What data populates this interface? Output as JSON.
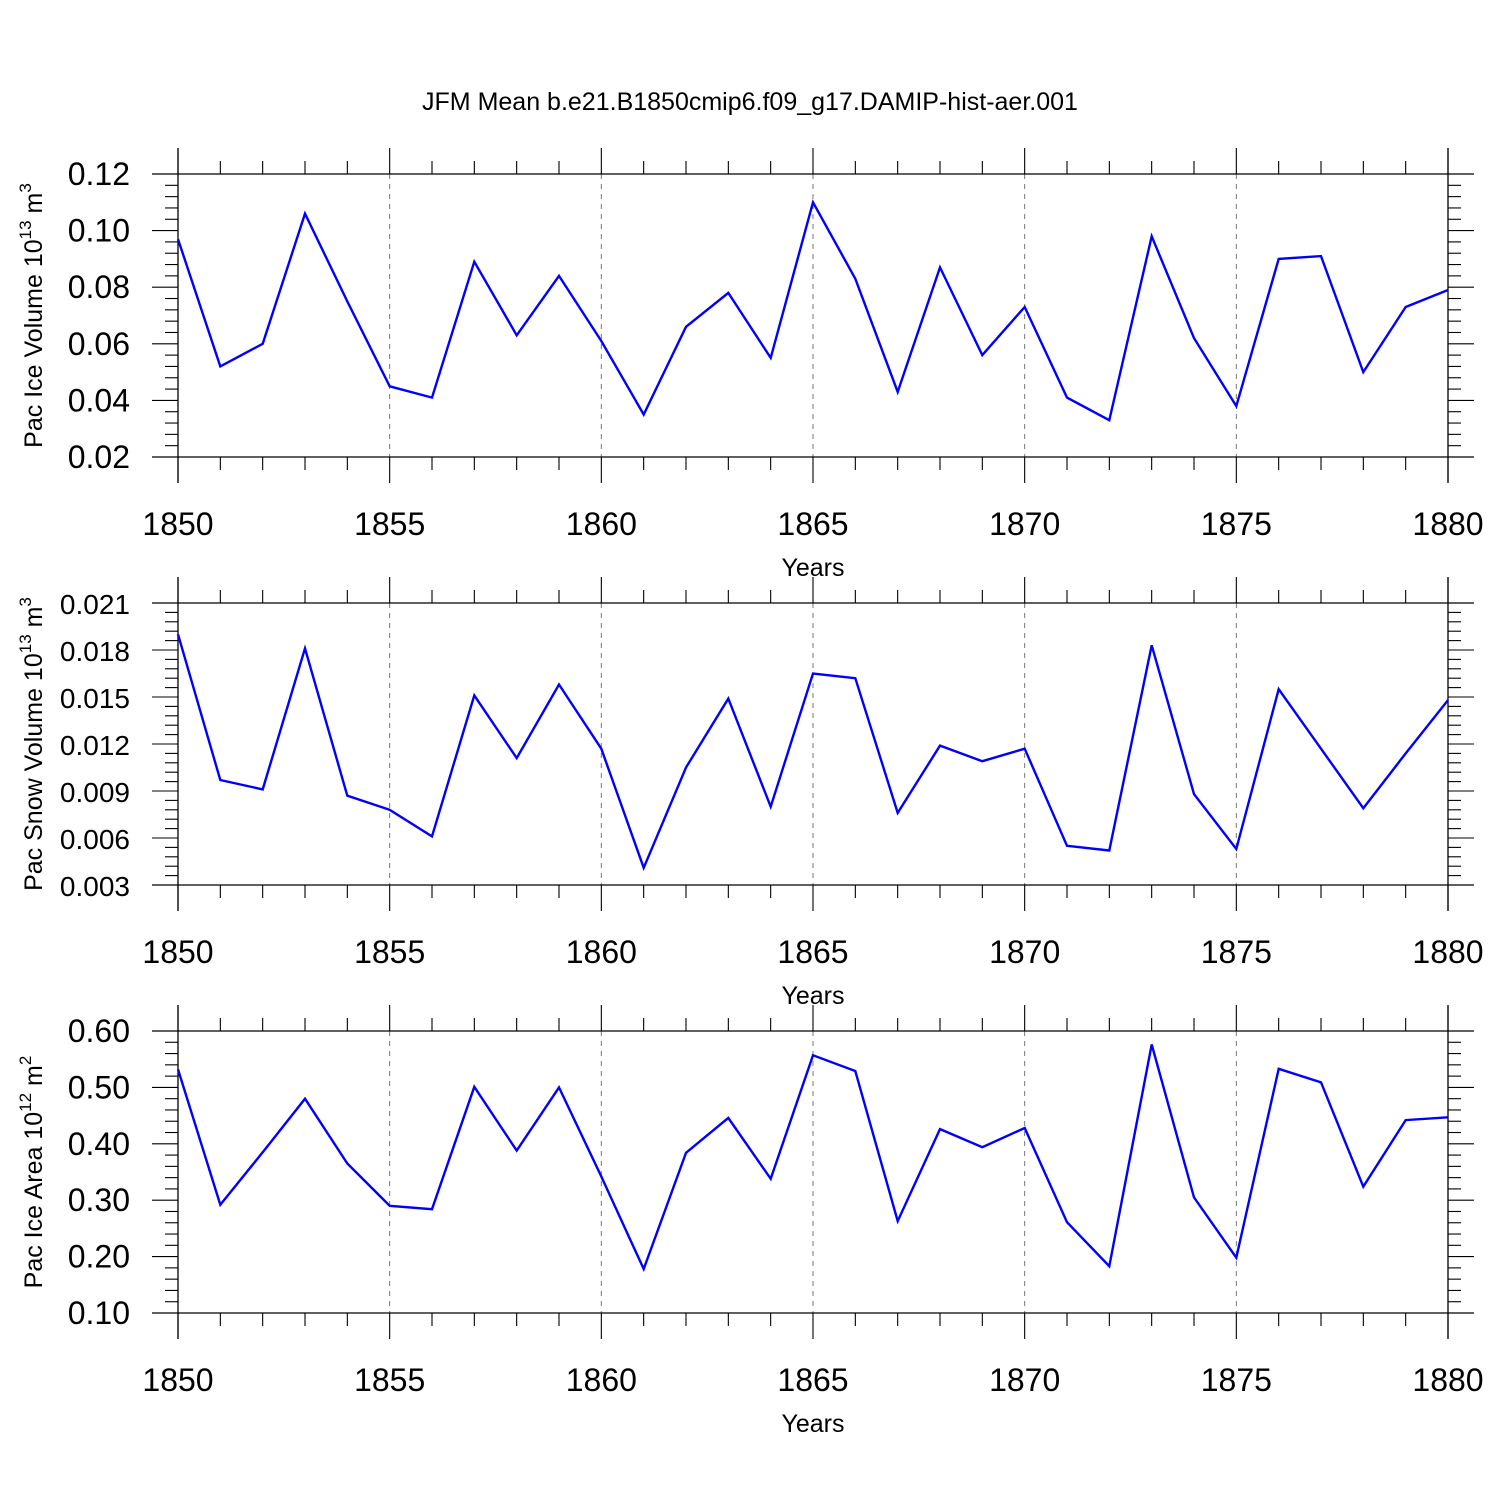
{
  "figure": {
    "title": "JFM Mean b.e21.B1850cmip6.f09_g17.DAMIP-hist-aer.001"
  },
  "chart_data": [
    {
      "type": "line",
      "xlabel": "Years",
      "ylabel": "Pac Ice Volume 10",
      "ylabel_exp": "13",
      "ylabel_unit": " m",
      "ylabel_unit_exp": "3",
      "xlim": [
        1850,
        1880
      ],
      "ylim": [
        0.02,
        0.12
      ],
      "xticks": [
        1850,
        1855,
        1860,
        1865,
        1870,
        1875,
        1880
      ],
      "xtick_labels": [
        "1850",
        "1855",
        "1860",
        "1865",
        "1870",
        "1875",
        "1880"
      ],
      "yticks": [
        0.02,
        0.04,
        0.06,
        0.08,
        0.1,
        0.12
      ],
      "ytick_labels": [
        "0.02",
        "0.04",
        "0.06",
        "0.08",
        "0.10",
        "0.12"
      ],
      "grid": "vertical dashed at major x ticks",
      "series_color": "#0000ff",
      "x": [
        1850,
        1851,
        1852,
        1853,
        1854,
        1855,
        1856,
        1857,
        1858,
        1859,
        1860,
        1861,
        1862,
        1863,
        1864,
        1865,
        1866,
        1867,
        1868,
        1869,
        1870,
        1871,
        1872,
        1873,
        1874,
        1875,
        1876,
        1877,
        1878,
        1879,
        1880
      ],
      "values": [
        0.097,
        0.052,
        0.06,
        0.106,
        0.075,
        0.045,
        0.041,
        0.089,
        0.063,
        0.084,
        0.061,
        0.035,
        0.066,
        0.078,
        0.055,
        0.11,
        0.083,
        0.043,
        0.087,
        0.056,
        0.073,
        0.041,
        0.033,
        0.098,
        0.062,
        0.038,
        0.09,
        0.091,
        0.05,
        0.073,
        0.079
      ]
    },
    {
      "type": "line",
      "xlabel": "Years",
      "ylabel": "Pac Snow Volume 10",
      "ylabel_exp": "13",
      "ylabel_unit": " m",
      "ylabel_unit_exp": "3",
      "xlim": [
        1850,
        1880
      ],
      "ylim": [
        0.003,
        0.021
      ],
      "xticks": [
        1850,
        1855,
        1860,
        1865,
        1870,
        1875,
        1880
      ],
      "xtick_labels": [
        "1850",
        "1855",
        "1860",
        "1865",
        "1870",
        "1875",
        "1880"
      ],
      "yticks": [
        0.003,
        0.006,
        0.009,
        0.012,
        0.015,
        0.018,
        0.021
      ],
      "ytick_labels": [
        "0.003",
        "0.006",
        "0.009",
        "0.012",
        "0.015",
        "0.018",
        "0.021"
      ],
      "grid": "vertical dashed at major x ticks",
      "series_color": "#0000ff",
      "x": [
        1850,
        1851,
        1852,
        1853,
        1854,
        1855,
        1856,
        1857,
        1858,
        1859,
        1860,
        1861,
        1862,
        1863,
        1864,
        1865,
        1866,
        1867,
        1868,
        1869,
        1870,
        1871,
        1872,
        1873,
        1874,
        1875,
        1876,
        1877,
        1878,
        1879,
        1880
      ],
      "values": [
        0.019,
        0.0097,
        0.0091,
        0.0181,
        0.0087,
        0.0078,
        0.0061,
        0.0151,
        0.0111,
        0.0158,
        0.0117,
        0.0041,
        0.0105,
        0.0149,
        0.008,
        0.0165,
        0.0162,
        0.0076,
        0.0119,
        0.0109,
        0.0117,
        0.0055,
        0.0052,
        0.0183,
        0.0088,
        0.0053,
        0.0155,
        0.0117,
        0.0079,
        0.0114,
        0.0148
      ]
    },
    {
      "type": "line",
      "xlabel": "Years",
      "ylabel": "Pac Ice Area 10",
      "ylabel_exp": "12",
      "ylabel_unit": " m",
      "ylabel_unit_exp": "2",
      "xlim": [
        1850,
        1880
      ],
      "ylim": [
        0.1,
        0.6
      ],
      "xticks": [
        1850,
        1855,
        1860,
        1865,
        1870,
        1875,
        1880
      ],
      "xtick_labels": [
        "1850",
        "1855",
        "1860",
        "1865",
        "1870",
        "1875",
        "1880"
      ],
      "yticks": [
        0.1,
        0.2,
        0.3,
        0.4,
        0.5,
        0.6
      ],
      "ytick_labels": [
        "0.10",
        "0.20",
        "0.30",
        "0.40",
        "0.50",
        "0.60"
      ],
      "grid": "vertical dashed at major x ticks",
      "series_color": "#0000ff",
      "x": [
        1850,
        1851,
        1852,
        1853,
        1854,
        1855,
        1856,
        1857,
        1858,
        1859,
        1860,
        1861,
        1862,
        1863,
        1864,
        1865,
        1866,
        1867,
        1868,
        1869,
        1870,
        1871,
        1872,
        1873,
        1874,
        1875,
        1876,
        1877,
        1878,
        1879,
        1880
      ],
      "values": [
        0.532,
        0.292,
        0.385,
        0.48,
        0.365,
        0.29,
        0.284,
        0.501,
        0.388,
        0.5,
        0.342,
        0.178,
        0.384,
        0.446,
        0.338,
        0.557,
        0.529,
        0.263,
        0.426,
        0.394,
        0.428,
        0.261,
        0.183,
        0.576,
        0.305,
        0.198,
        0.533,
        0.509,
        0.324,
        0.442,
        0.447
      ]
    }
  ]
}
